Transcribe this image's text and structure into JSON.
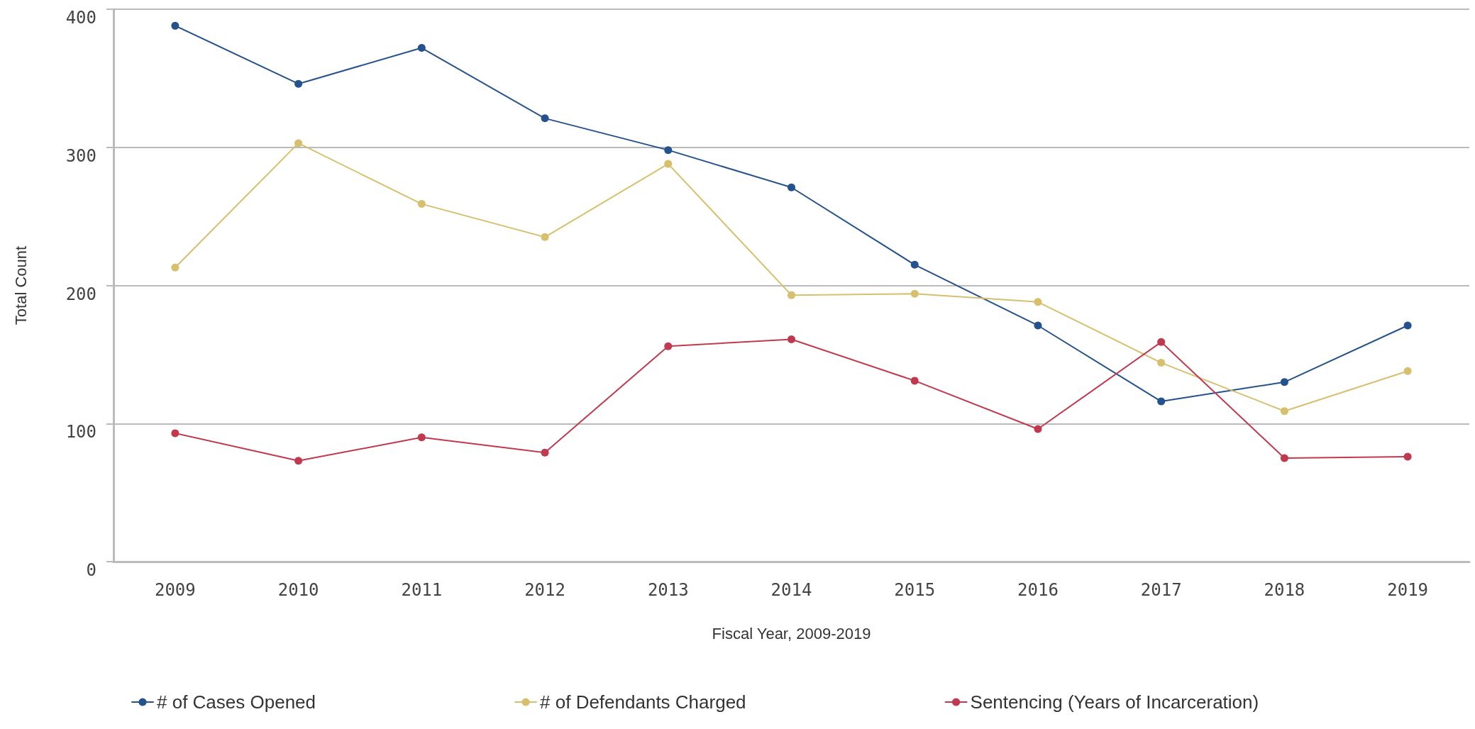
{
  "chart_data": {
    "type": "line",
    "xlabel": "Fiscal Year, 2009-2019",
    "ylabel": "Total Count",
    "categories": [
      "2009",
      "2010",
      "2011",
      "2012",
      "2013",
      "2014",
      "2015",
      "2016",
      "2017",
      "2018",
      "2019"
    ],
    "series": [
      {
        "name": "# of Cases Opened",
        "color": "#24528c",
        "values": [
          388,
          346,
          372,
          321,
          298,
          271,
          215,
          171,
          116,
          130,
          171
        ]
      },
      {
        "name": "# of Defendants Charged",
        "color": "#d6c06e",
        "values": [
          213,
          303,
          259,
          235,
          288,
          193,
          194,
          188,
          144,
          109,
          138
        ]
      },
      {
        "name": "Sentencing (Years of Incarceration)",
        "color": "#c0394f",
        "values": [
          93,
          73,
          90,
          79,
          156,
          161,
          131,
          96,
          159,
          75,
          76
        ]
      }
    ],
    "ylim": [
      0,
      400
    ],
    "yticks": [
      0,
      100,
      200,
      300,
      400
    ],
    "grid": "y",
    "legend": "bottom",
    "marker": "circle",
    "line_style": "solid"
  }
}
